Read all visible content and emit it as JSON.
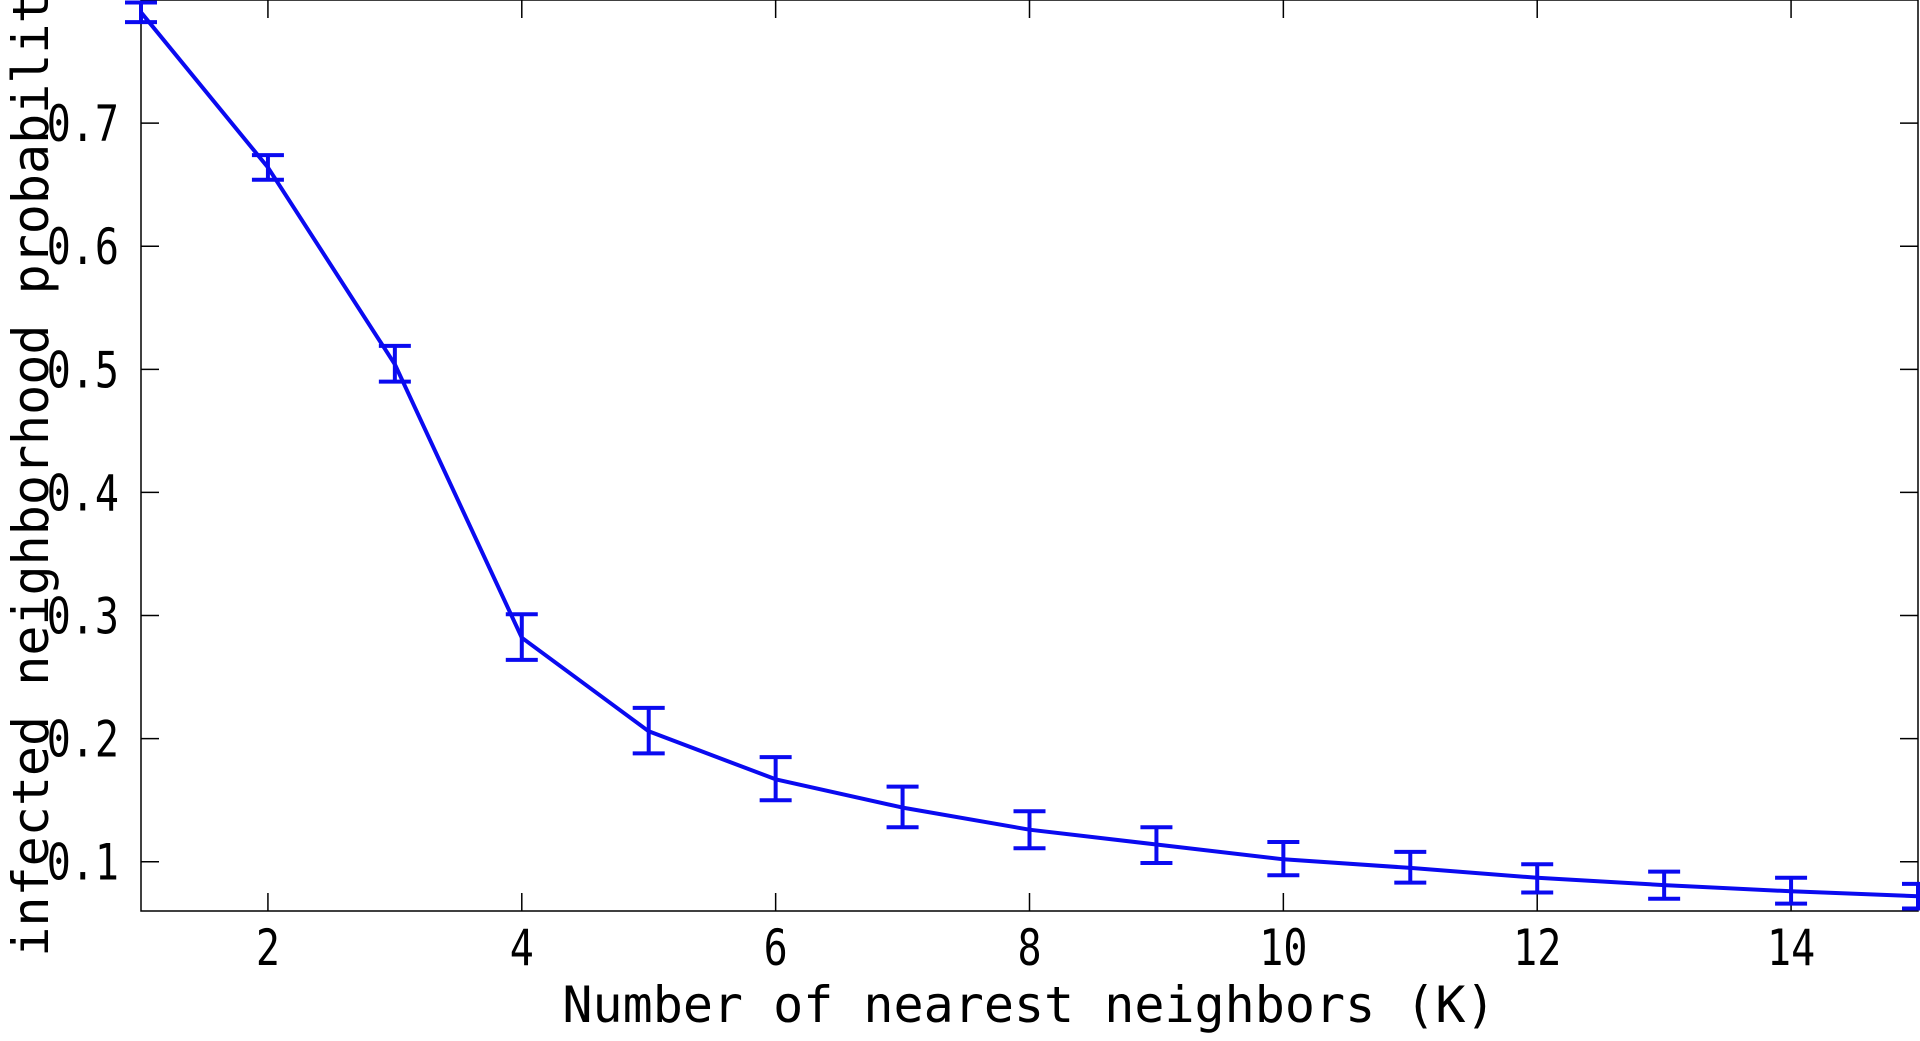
{
  "chart_data": {
    "type": "line",
    "title": "",
    "xlabel": "Number of nearest neighbors (K)",
    "ylabel": "infected neighborhood probability",
    "xlim": [
      1,
      15
    ],
    "ylim": [
      0.06,
      0.8
    ],
    "xticks": [
      2,
      4,
      6,
      8,
      10,
      12,
      14
    ],
    "yticks": [
      0.1,
      0.2,
      0.3,
      0.4,
      0.5,
      0.6,
      0.7
    ],
    "ytick_labels": [
      "0.1",
      "0.2",
      "0.3",
      "0.4",
      "0.5",
      "0.6",
      "0.7"
    ],
    "grid": false,
    "legend": false,
    "line_color": "#0a0af0",
    "series": [
      {
        "x": [
          1,
          2,
          3,
          4,
          5,
          6,
          7,
          8,
          9,
          10,
          11,
          12,
          13,
          14,
          15
        ],
        "y": [
          0.79,
          0.664,
          0.504,
          0.282,
          0.206,
          0.167,
          0.144,
          0.126,
          0.114,
          0.102,
          0.095,
          0.087,
          0.081,
          0.076,
          0.072
        ],
        "err_low": [
          0.782,
          0.654,
          0.49,
          0.264,
          0.188,
          0.15,
          0.128,
          0.111,
          0.099,
          0.089,
          0.083,
          0.075,
          0.07,
          0.066,
          0.062
        ],
        "err_high": [
          0.798,
          0.674,
          0.519,
          0.301,
          0.225,
          0.185,
          0.161,
          0.141,
          0.128,
          0.116,
          0.108,
          0.098,
          0.092,
          0.087,
          0.082
        ]
      }
    ]
  }
}
